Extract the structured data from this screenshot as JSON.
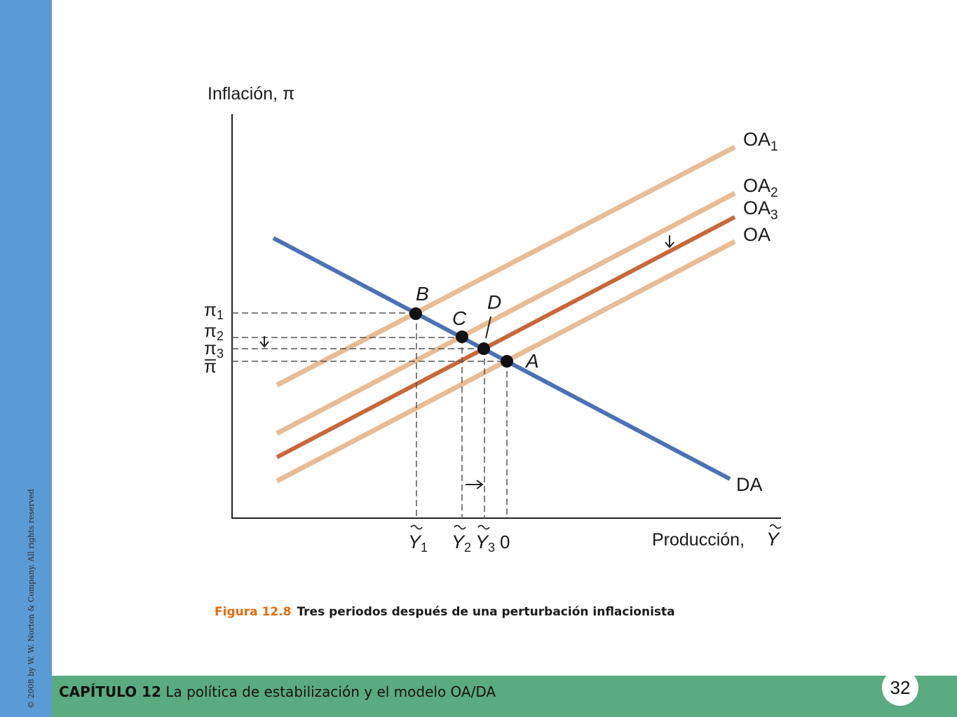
{
  "sidebar": {
    "copyright": "© 2008 by W. W. Norton & Company. All rights reserved"
  },
  "footer": {
    "chapter": "CAPÍTULO 12",
    "title": "La política de estabilización y el modelo OA/DA",
    "page": "32"
  },
  "caption": {
    "number": "Figura 12.8",
    "text": "Tres periodos después de una perturbación inflacionista"
  },
  "diagram": {
    "y_axis_label": "Inflación, π",
    "x_axis_label": "Producción,",
    "x_axis_symbol": "Y",
    "curves": {
      "oa1": {
        "name": "OA",
        "sub": "1"
      },
      "oa2": {
        "name": "OA",
        "sub": "2"
      },
      "oa3": {
        "name": "OA",
        "sub": "3"
      },
      "oa": {
        "name": "OA"
      },
      "da": {
        "name": "DA"
      }
    },
    "points": {
      "a": "A",
      "b": "B",
      "c": "C",
      "d": "D"
    },
    "y_ticks": {
      "pi1": {
        "sym": "π",
        "sub": "1"
      },
      "pi2": {
        "sym": "π",
        "sub": "2"
      },
      "pi3": {
        "sym": "π",
        "sub": "3"
      },
      "pibar": {
        "sym": "π"
      }
    },
    "x_ticks": {
      "y1": {
        "sym": "Y",
        "sub": "1"
      },
      "y2": {
        "sym": "Y",
        "sub": "2"
      },
      "y3": {
        "sym": "Y",
        "sub": "3"
      },
      "zero": "0"
    },
    "colors": {
      "da": "#4a72b5",
      "oa_light": "#e8bc94",
      "oa_dark": "#c8683a",
      "axis": "#222222",
      "guide": "#555555"
    }
  }
}
